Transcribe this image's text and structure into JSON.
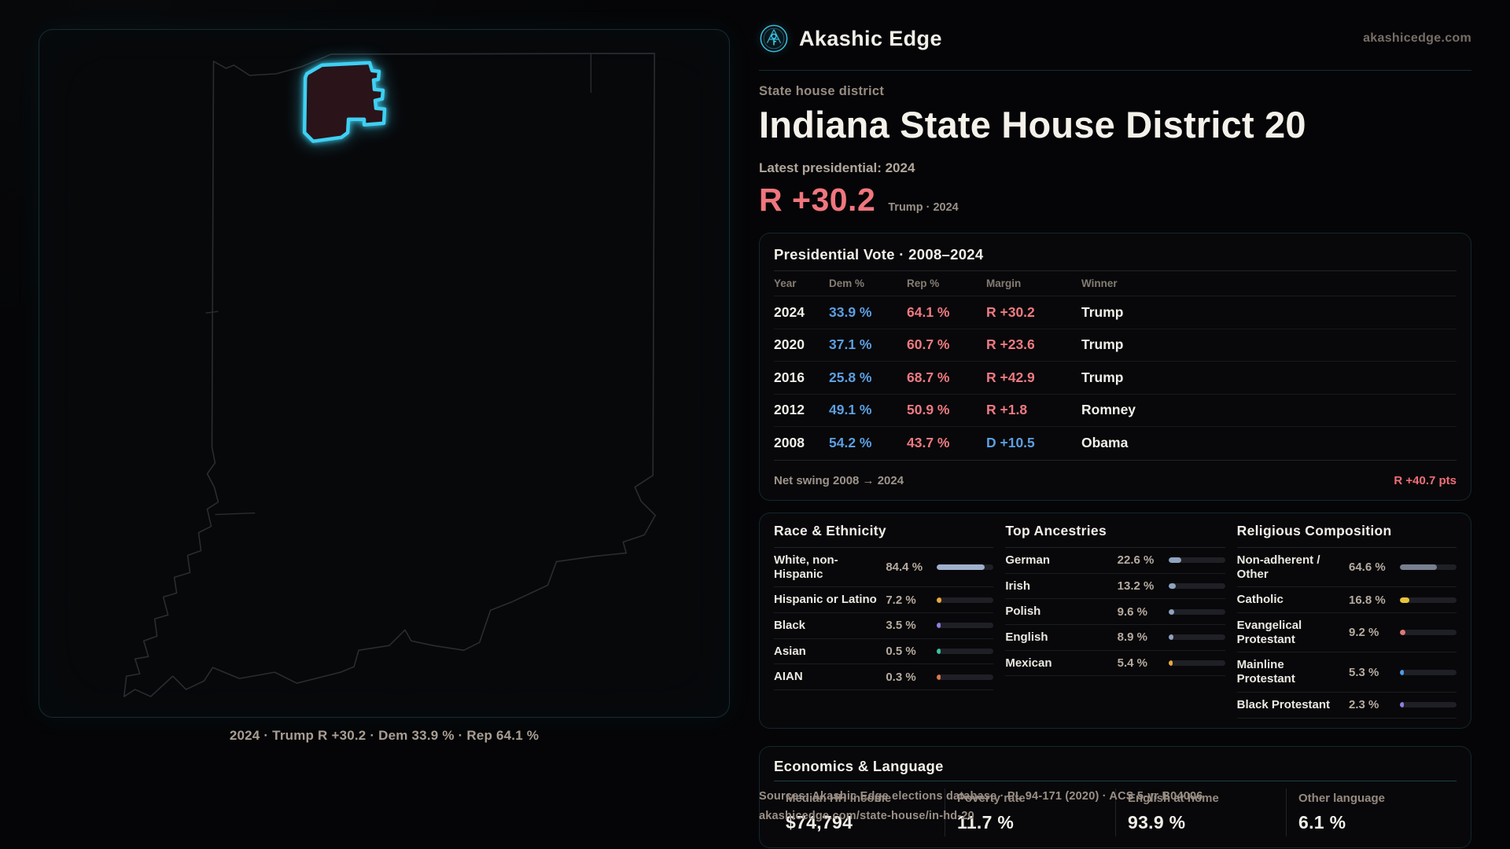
{
  "brand": {
    "name": "Akashic Edge",
    "domain": "akashicedge.com"
  },
  "page": {
    "kicker": "State house district",
    "title": "Indiana State House District 20",
    "latest_label": "Latest presidential: 2024",
    "headline": {
      "margin": "R +30.2",
      "detail": "Trump · 2024"
    }
  },
  "map": {
    "caption": "2024 · Trump R +30.2 · Dem 33.9 % · Rep 64.1 %",
    "district_color": "#3fd0f2",
    "district_fill": "#2a141a",
    "state_outline_color": "#2c2c30"
  },
  "presidential": {
    "title": "Presidential Vote · 2008–2024",
    "columns": [
      "Year",
      "Dem %",
      "Rep %",
      "Margin",
      "Winner"
    ],
    "rows": [
      {
        "year": "2024",
        "dem": "33.9 %",
        "rep": "64.1 %",
        "margin": "R +30.2",
        "party": "R",
        "winner": "Trump"
      },
      {
        "year": "2020",
        "dem": "37.1 %",
        "rep": "60.7 %",
        "margin": "R +23.6",
        "party": "R",
        "winner": "Trump"
      },
      {
        "year": "2016",
        "dem": "25.8 %",
        "rep": "68.7 %",
        "margin": "R +42.9",
        "party": "R",
        "winner": "Trump"
      },
      {
        "year": "2012",
        "dem": "49.1 %",
        "rep": "50.9 %",
        "margin": "R +1.8",
        "party": "R",
        "winner": "Romney"
      },
      {
        "year": "2008",
        "dem": "54.2 %",
        "rep": "43.7 %",
        "margin": "D +10.5",
        "party": "D",
        "winner": "Obama"
      }
    ],
    "footer": {
      "label": "Net swing 2008 → 2024",
      "value": "R +40.7 pts"
    }
  },
  "demographics": [
    {
      "title": "Race & Ethnicity",
      "rows": [
        {
          "label": "White, non-Hispanic",
          "value": "84.4 %",
          "pct": 84.4,
          "color": "#9fb0cc"
        },
        {
          "label": "Hispanic or Latino",
          "value": "7.2 %",
          "pct": 7.2,
          "color": "#e8a93d"
        },
        {
          "label": "Black",
          "value": "3.5 %",
          "pct": 3.5,
          "color": "#8d7fe0"
        },
        {
          "label": "Asian",
          "value": "0.5 %",
          "pct": 0.5,
          "color": "#3fbf9f"
        },
        {
          "label": "AIAN",
          "value": "0.3 %",
          "pct": 0.3,
          "color": "#d9784a"
        }
      ]
    },
    {
      "title": "Top Ancestries",
      "rows": [
        {
          "label": "German",
          "value": "22.6 %",
          "pct": 22.6,
          "color": "#8fa3bf"
        },
        {
          "label": "Irish",
          "value": "13.2 %",
          "pct": 13.2,
          "color": "#8fa3bf"
        },
        {
          "label": "Polish",
          "value": "9.6 %",
          "pct": 9.6,
          "color": "#8fa3bf"
        },
        {
          "label": "English",
          "value": "8.9 %",
          "pct": 8.9,
          "color": "#8fa3bf"
        },
        {
          "label": "Mexican",
          "value": "5.4 %",
          "pct": 5.4,
          "color": "#e8a93d"
        }
      ]
    },
    {
      "title": "Religious Composition",
      "rows": [
        {
          "label": "Non-adherent / Other",
          "value": "64.6 %",
          "pct": 64.6,
          "color": "#78808f"
        },
        {
          "label": "Catholic",
          "value": "16.8 %",
          "pct": 16.8,
          "color": "#e8c33d"
        },
        {
          "label": "Evangelical Protestant",
          "value": "9.2 %",
          "pct": 9.2,
          "color": "#e07878"
        },
        {
          "label": "Mainline Protestant",
          "value": "5.3 %",
          "pct": 5.3,
          "color": "#4f9be8"
        },
        {
          "label": "Black Protestant",
          "value": "2.3 %",
          "pct": 2.3,
          "color": "#8d7fe0"
        }
      ]
    }
  ],
  "economics": {
    "title": "Economics & Language",
    "stats": [
      {
        "label": "Median HH income",
        "value": "$74,794"
      },
      {
        "label": "Poverty rate",
        "value": "11.7 %"
      },
      {
        "label": "English at home",
        "value": "93.9 %"
      },
      {
        "label": "Other language",
        "value": "6.1 %"
      }
    ]
  },
  "source": {
    "line1": "Sources: Akashic Edge elections database · PL 94-171 (2020) · ACS 5-yr B04006",
    "line2": "akashicedge.com/state-house/in-hd-20"
  },
  "colors": {
    "dem": "#5d9fe2",
    "rep": "#ee7a81",
    "accent_cyan": "#3fd0f2",
    "headline_red": "#f0767e"
  }
}
